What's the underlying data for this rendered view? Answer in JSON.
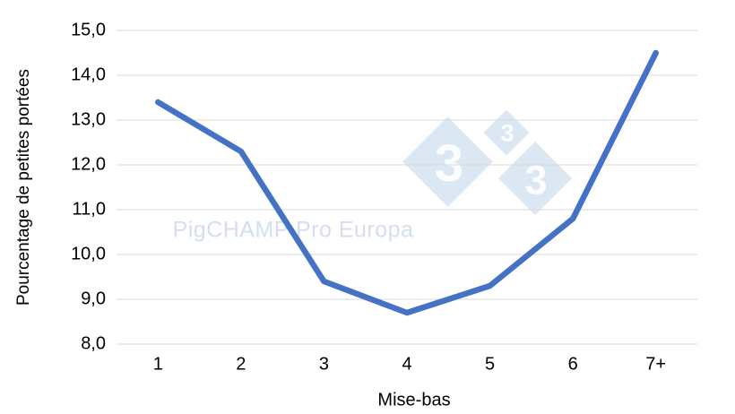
{
  "chart_data": {
    "type": "line",
    "categories": [
      "1",
      "2",
      "3",
      "4",
      "5",
      "6",
      "7+"
    ],
    "values": [
      13.4,
      12.3,
      9.4,
      8.7,
      9.3,
      10.8,
      14.5
    ],
    "title": "",
    "xlabel": "Mise-bas",
    "ylabel": "Pourcentage de petites portées",
    "ylim": [
      8,
      15
    ],
    "ytick_step": 1,
    "ytick_labels": [
      "8,0",
      "9,0",
      "10,0",
      "11,0",
      "12,0",
      "13,0",
      "14,0",
      "15,0"
    ],
    "grid": "horizontal",
    "grid_color": "#d9d9d9",
    "line_color": "#4472C4",
    "line_width": 6.5,
    "legend_position": "none"
  },
  "watermarks": {
    "text": "PigCHAMP Pro Europa",
    "text_color": "#d5dfec",
    "logo_digits": [
      "3",
      "3",
      "3"
    ],
    "logo_diamond_color": "#dce7f4",
    "logo_digit_color": "#fbfdfe"
  }
}
